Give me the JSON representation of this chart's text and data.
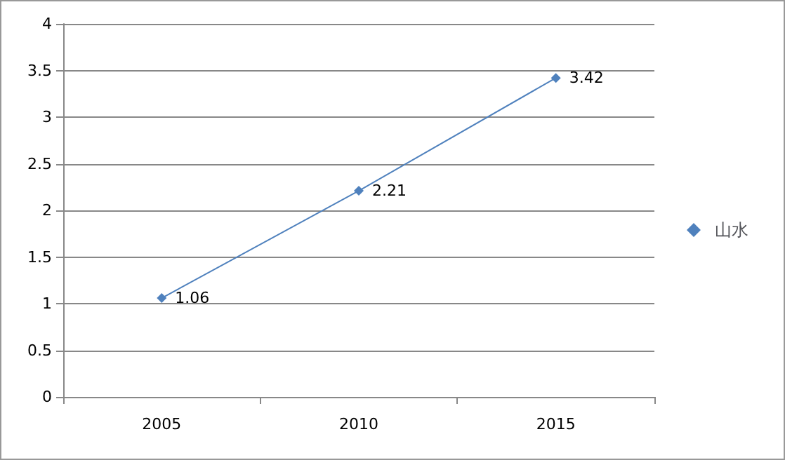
{
  "chart_data": {
    "type": "line",
    "categories": [
      "2005",
      "2010",
      "2015"
    ],
    "series": [
      {
        "name": "山水",
        "color": "#4f81bd",
        "values": [
          1.06,
          2.21,
          3.42
        ]
      }
    ],
    "ylim": [
      0,
      4
    ],
    "yticks": [
      0,
      0.5,
      1,
      1.5,
      2,
      2.5,
      3,
      3.5,
      4
    ],
    "grid": "y",
    "legend": "right",
    "marker": "diamond",
    "data_labels": true
  }
}
